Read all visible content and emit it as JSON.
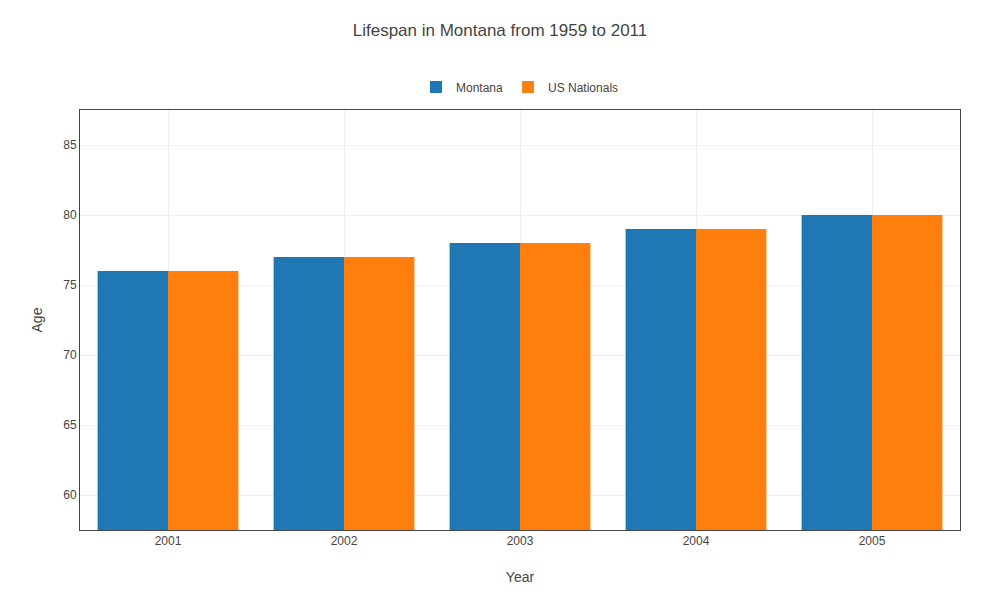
{
  "chart_data": {
    "type": "bar",
    "title": "Lifespan in Montana from 1959 to 2011",
    "xlabel": "Year",
    "ylabel": "Age",
    "categories": [
      "2001",
      "2002",
      "2003",
      "2004",
      "2005"
    ],
    "series": [
      {
        "name": "Montana",
        "values": [
          76,
          77,
          78,
          79,
          80
        ]
      },
      {
        "name": "US Nationals",
        "values": [
          76,
          77,
          78,
          79,
          80
        ]
      }
    ],
    "ylim": [
      57.5,
      87.5
    ],
    "yticks": [
      60,
      65,
      70,
      75,
      80,
      85
    ],
    "grid": true,
    "legend": "top"
  }
}
